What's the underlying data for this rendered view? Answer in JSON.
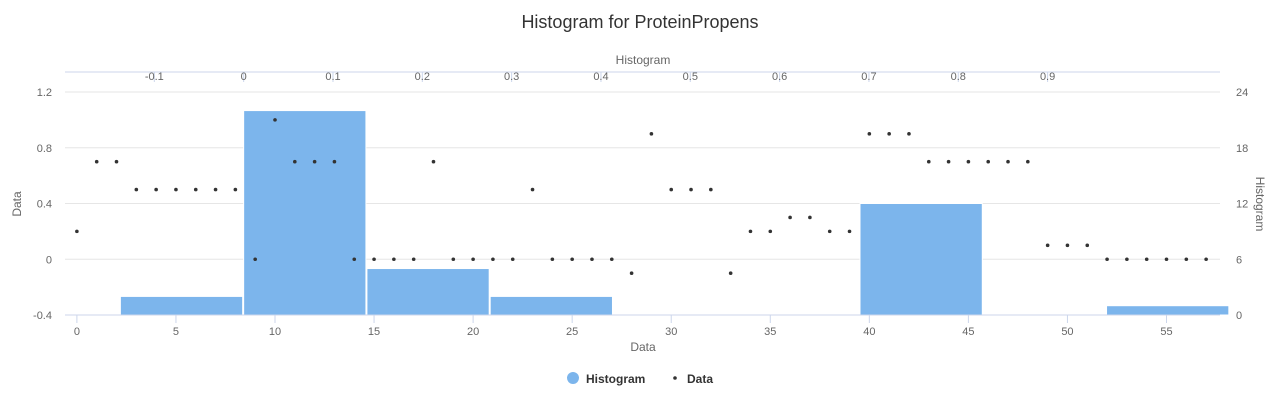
{
  "chart_data": {
    "type": "bar",
    "title": "Histogram for ProteinPropens",
    "colors": {
      "histogram": "#7cb5ec",
      "data": "#333333"
    },
    "axes": {
      "x_bottom": {
        "title": "Data",
        "range": [
          -0.6,
          57.7
        ],
        "ticks": [
          0,
          5,
          10,
          15,
          20,
          25,
          30,
          35,
          40,
          45,
          50,
          55
        ]
      },
      "x_top": {
        "title": "Histogram",
        "range": [
          -0.2,
          1.093
        ],
        "ticks": [
          "-0.1",
          "0",
          "0.1",
          "0.2",
          "0.3",
          "0.4",
          "0.5",
          "0.6",
          "0.7",
          "0.8",
          "0.9"
        ],
        "tick_values": [
          -0.1,
          0,
          0.1,
          0.2,
          0.3,
          0.4,
          0.5,
          0.6,
          0.7,
          0.8,
          0.9
        ]
      },
      "y_left": {
        "title": "Data",
        "range": [
          -0.4,
          1.2
        ],
        "ticks": [
          "-0.4",
          "0",
          "0.4",
          "0.8",
          "1.2"
        ],
        "tick_values": [
          -0.4,
          0,
          0.4,
          0.8,
          1.2
        ]
      },
      "y_right": {
        "title": "Histogram",
        "range": [
          0,
          24
        ],
        "ticks": [
          "0",
          "6",
          "12",
          "18",
          "24"
        ],
        "tick_values": [
          0,
          6,
          12,
          18,
          24
        ]
      }
    },
    "grid": true,
    "legend": {
      "placement": "bottom-center",
      "items": [
        "Histogram",
        "Data"
      ]
    },
    "series": [
      {
        "name": "Histogram",
        "type": "histogram",
        "bins": [
          {
            "x0": -0.138,
            "x1": 0.0,
            "count": 2
          },
          {
            "x0": 0.0,
            "x1": 0.138,
            "count": 22
          },
          {
            "x0": 0.138,
            "x1": 0.276,
            "count": 5
          },
          {
            "x0": 0.276,
            "x1": 0.414,
            "count": 2
          },
          {
            "x0": 0.414,
            "x1": 0.552,
            "count": 0
          },
          {
            "x0": 0.552,
            "x1": 0.69,
            "count": 0
          },
          {
            "x0": 0.69,
            "x1": 0.828,
            "count": 12
          },
          {
            "x0": 0.828,
            "x1": 0.966,
            "count": 0
          },
          {
            "x0": 0.966,
            "x1": 1.104,
            "count": 1
          }
        ]
      },
      {
        "name": "Data",
        "type": "scatter",
        "x": [
          0,
          1,
          2,
          3,
          4,
          5,
          6,
          7,
          8,
          9,
          10,
          11,
          12,
          13,
          14,
          15,
          16,
          17,
          18,
          19,
          20,
          21,
          22,
          23,
          24,
          25,
          26,
          27,
          28,
          29,
          30,
          31,
          32,
          33,
          34,
          35,
          36,
          37,
          38,
          39,
          40,
          41,
          42,
          43,
          44,
          45,
          46,
          47,
          48,
          49,
          50,
          51,
          52,
          53,
          54,
          55,
          56,
          57
        ],
        "y": [
          0.2,
          0.7,
          0.7,
          0.5,
          0.5,
          0.5,
          0.5,
          0.5,
          0.5,
          0.0,
          1.0,
          0.7,
          0.7,
          0.7,
          0.0,
          0.0,
          0.0,
          0.0,
          0.7,
          0.0,
          0.0,
          0.0,
          0.0,
          0.5,
          0.0,
          0.0,
          0.0,
          0.0,
          -0.1,
          0.9,
          0.5,
          0.5,
          0.5,
          -0.1,
          0.2,
          0.2,
          0.3,
          0.3,
          0.2,
          0.2,
          0.9,
          0.9,
          0.9,
          0.7,
          0.7,
          0.7,
          0.7,
          0.7,
          0.7,
          0.1,
          0.1,
          0.1,
          0.0,
          0.0,
          0.0,
          0.0,
          0.0,
          0.0
        ]
      }
    ]
  }
}
